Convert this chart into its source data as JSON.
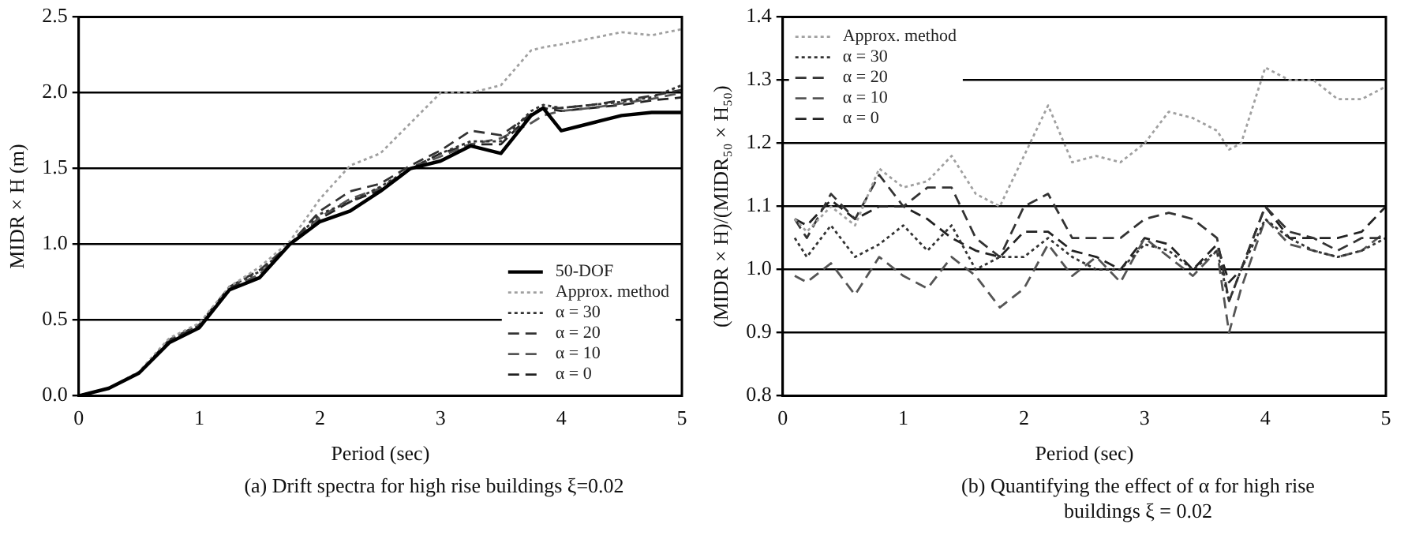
{
  "chart_data": [
    {
      "type": "line",
      "title": "(a) Drift spectra for high rise buildings ξ=0.02",
      "xlabel": "Period (sec)",
      "ylabel": "MIDR × H (m)",
      "x": [
        0,
        0.25,
        0.5,
        0.75,
        1,
        1.25,
        1.5,
        1.75,
        2,
        2.25,
        2.5,
        2.75,
        3,
        3.25,
        3.5,
        3.75,
        3.85,
        4,
        4.25,
        4.5,
        4.75,
        5
      ],
      "xlim": [
        0,
        5
      ],
      "xticks": [
        0,
        1,
        2,
        3,
        4,
        5
      ],
      "ylim": [
        0,
        2.5
      ],
      "yticks": [
        {
          "value": 0,
          "label": "0.0"
        },
        0.5,
        {
          "value": 1,
          "label": "1.0"
        },
        1.5,
        {
          "value": 2,
          "label": "2.0"
        },
        2.5
      ],
      "grid": "y",
      "legend": "bottom right",
      "marker": "none",
      "series": [
        {
          "name": "50-DOF",
          "color": "#000000",
          "line_style": "solid",
          "values": [
            0,
            0.05,
            0.15,
            0.35,
            0.45,
            0.7,
            0.78,
            1.0,
            1.15,
            1.22,
            1.35,
            1.5,
            1.55,
            1.65,
            1.6,
            1.85,
            1.9,
            1.75,
            1.8,
            1.85,
            1.87,
            1.87
          ]
        },
        {
          "name": "Approx. method",
          "color": "#a0a0a0",
          "line_style": "dotted",
          "values": [
            0,
            0.05,
            0.16,
            0.38,
            0.48,
            0.72,
            0.85,
            1.02,
            1.3,
            1.52,
            1.6,
            1.8,
            2.0,
            2.0,
            2.05,
            2.28,
            2.3,
            2.32,
            2.36,
            2.4,
            2.38,
            2.42
          ]
        },
        {
          "name": "α = 30",
          "color": "#333333",
          "line_style": "dotted",
          "values": [
            0,
            0.05,
            0.15,
            0.37,
            0.47,
            0.72,
            0.82,
            1.0,
            1.2,
            1.28,
            1.38,
            1.5,
            1.6,
            1.68,
            1.68,
            1.88,
            1.92,
            1.9,
            1.92,
            1.94,
            1.97,
            2.05
          ]
        },
        {
          "name": "α = 20",
          "color": "#333333",
          "line_style": "dashed",
          "values": [
            0,
            0.05,
            0.15,
            0.37,
            0.47,
            0.72,
            0.83,
            1.0,
            1.22,
            1.35,
            1.4,
            1.52,
            1.62,
            1.75,
            1.72,
            1.86,
            1.9,
            1.9,
            1.92,
            1.95,
            1.98,
            2.02
          ]
        },
        {
          "name": "α = 10",
          "color": "#555555",
          "line_style": "dashed",
          "values": [
            0,
            0.05,
            0.15,
            0.36,
            0.46,
            0.7,
            0.8,
            1.0,
            1.18,
            1.3,
            1.37,
            1.5,
            1.58,
            1.66,
            1.7,
            1.8,
            1.85,
            1.88,
            1.9,
            1.93,
            1.96,
            2.0
          ]
        },
        {
          "name": "α = 0",
          "color": "#222222",
          "line_style": "dashed",
          "values": [
            0,
            0.05,
            0.15,
            0.36,
            0.46,
            0.71,
            0.8,
            1.0,
            1.17,
            1.28,
            1.36,
            1.5,
            1.6,
            1.66,
            1.66,
            1.86,
            1.9,
            1.88,
            1.9,
            1.92,
            1.95,
            1.97
          ]
        }
      ]
    },
    {
      "type": "line",
      "title": "(b) Quantifying the effect of α for high rise buildings ξ = 0.02",
      "xlabel": "Period (sec)",
      "ylabel": "(MIDR × H)/(MIDR₅₀ × H₅₀)",
      "x": [
        0.1,
        0.2,
        0.4,
        0.6,
        0.8,
        1.0,
        1.2,
        1.4,
        1.6,
        1.8,
        2.0,
        2.2,
        2.4,
        2.6,
        2.8,
        3.0,
        3.2,
        3.4,
        3.6,
        3.7,
        3.8,
        4.0,
        4.2,
        4.4,
        4.6,
        4.8,
        5.0
      ],
      "xlim": [
        0,
        5
      ],
      "xticks": [
        0,
        1,
        2,
        3,
        4,
        5
      ],
      "ylim": [
        0.8,
        1.4
      ],
      "yticks": [
        0.8,
        0.9,
        {
          "value": 1,
          "label": "1.0"
        },
        1.1,
        1.2,
        1.3,
        1.4
      ],
      "grid": "y",
      "legend": "top left",
      "marker": "none",
      "series": [
        {
          "name": "Approx. method",
          "color": "#a0a0a0",
          "line_style": "dotted",
          "values": [
            1.08,
            1.06,
            1.1,
            1.07,
            1.16,
            1.13,
            1.14,
            1.18,
            1.12,
            1.1,
            1.18,
            1.26,
            1.17,
            1.18,
            1.17,
            1.2,
            1.25,
            1.24,
            1.22,
            1.19,
            1.2,
            1.32,
            1.3,
            1.3,
            1.27,
            1.27,
            1.29
          ]
        },
        {
          "name": "α = 30",
          "color": "#333333",
          "line_style": "dotted",
          "values": [
            1.05,
            1.02,
            1.07,
            1.02,
            1.04,
            1.07,
            1.03,
            1.07,
            1.0,
            1.02,
            1.02,
            1.05,
            1.02,
            1.0,
            1.0,
            1.04,
            1.03,
            1.0,
            1.03,
            0.95,
            1.0,
            1.08,
            1.05,
            1.03,
            1.02,
            1.03,
            1.05
          ]
        },
        {
          "name": "α = 20",
          "color": "#333333",
          "line_style": "dashed",
          "values": [
            1.08,
            1.05,
            1.12,
            1.08,
            1.15,
            1.1,
            1.13,
            1.13,
            1.05,
            1.02,
            1.1,
            1.12,
            1.05,
            1.05,
            1.05,
            1.08,
            1.09,
            1.08,
            1.05,
            0.95,
            1.0,
            1.1,
            1.06,
            1.05,
            1.03,
            1.05,
            1.05
          ]
        },
        {
          "name": "α = 10",
          "color": "#555555",
          "line_style": "dashed",
          "values": [
            0.99,
            0.98,
            1.01,
            0.96,
            1.02,
            0.99,
            0.97,
            1.02,
            0.99,
            0.94,
            0.97,
            1.04,
            0.99,
            1.02,
            0.98,
            1.05,
            1.02,
            0.99,
            1.03,
            0.9,
            0.97,
            1.08,
            1.04,
            1.03,
            1.02,
            1.03,
            1.06
          ]
        },
        {
          "name": "α = 0",
          "color": "#222222",
          "line_style": "dashed",
          "values": [
            1.08,
            1.07,
            1.11,
            1.08,
            1.1,
            1.1,
            1.08,
            1.05,
            1.03,
            1.02,
            1.06,
            1.06,
            1.03,
            1.02,
            1.0,
            1.05,
            1.04,
            1.0,
            1.04,
            0.98,
            1.0,
            1.1,
            1.05,
            1.05,
            1.05,
            1.06,
            1.1
          ]
        }
      ]
    }
  ]
}
